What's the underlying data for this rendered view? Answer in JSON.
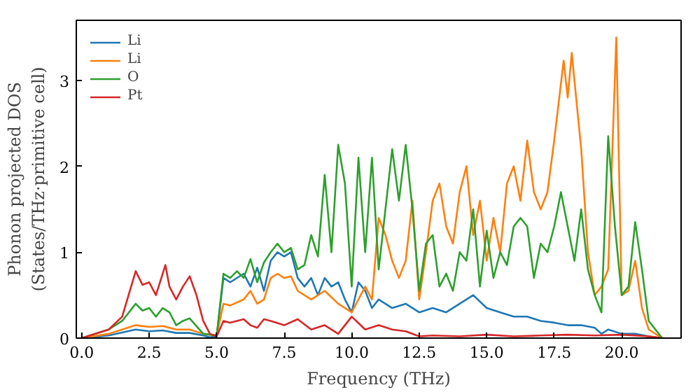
{
  "chart_data": {
    "type": "line",
    "xlabel": "Frequency (THz)",
    "ylabel": "Phonon projected DOS\n(States/THz·primitive cell)",
    "xlim": [
      -0.2,
      22.2
    ],
    "ylim": [
      0,
      3.7
    ],
    "xticks": [
      {
        "value": 0,
        "label": "0.0"
      },
      {
        "value": 2.5,
        "label": "2.5"
      },
      {
        "value": 5,
        "label": "5.0"
      },
      {
        "value": 7.5,
        "label": "7.5"
      },
      {
        "value": 10,
        "label": "10.0"
      },
      {
        "value": 12.5,
        "label": "12.5"
      },
      {
        "value": 15,
        "label": "15.0"
      },
      {
        "value": 17.5,
        "label": "17.5"
      },
      {
        "value": 20,
        "label": "20.0"
      }
    ],
    "yticks": [
      0,
      1,
      2,
      3
    ],
    "legend": "top left",
    "grid": false,
    "line_style": "solid",
    "series": [
      {
        "name": "Li",
        "color": "#1f77b4",
        "x": [
          0,
          1,
          2,
          2.5,
          3,
          3.5,
          4,
          4.5,
          4.75,
          5,
          5.25,
          5.5,
          6,
          6.25,
          6.5,
          6.75,
          7,
          7.25,
          7.5,
          7.75,
          8,
          8.25,
          8.5,
          8.75,
          9,
          9.25,
          9.5,
          9.75,
          10,
          10.25,
          10.5,
          10.75,
          11,
          11.5,
          12,
          12.5,
          13,
          13.5,
          14,
          14.5,
          15,
          15.5,
          16,
          16.5,
          17,
          17.5,
          18,
          18.5,
          19,
          19.25,
          19.5,
          20,
          20.5,
          21,
          21.5
        ],
        "values": [
          0,
          0.03,
          0.1,
          0.08,
          0.09,
          0.06,
          0.06,
          0.03,
          0.01,
          0.02,
          0.7,
          0.65,
          0.75,
          0.6,
          0.82,
          0.55,
          0.9,
          1.0,
          0.95,
          1.0,
          0.7,
          0.6,
          0.7,
          0.5,
          0.7,
          0.6,
          0.65,
          0.45,
          0.3,
          0.65,
          0.55,
          0.35,
          0.45,
          0.35,
          0.4,
          0.3,
          0.35,
          0.3,
          0.4,
          0.5,
          0.35,
          0.3,
          0.25,
          0.25,
          0.2,
          0.18,
          0.15,
          0.15,
          0.12,
          0.05,
          0.1,
          0.05,
          0.05,
          0.02,
          0
        ]
      },
      {
        "name": "Li",
        "color": "#ff7f0e",
        "x": [
          0,
          1,
          2,
          2.5,
          3,
          3.5,
          4,
          4.5,
          5,
          5.25,
          5.5,
          6,
          6.25,
          6.5,
          6.75,
          7,
          7.25,
          7.5,
          7.75,
          8,
          8.5,
          9,
          9.5,
          10,
          10.5,
          10.75,
          11,
          11.25,
          11.5,
          11.75,
          12,
          12.25,
          12.5,
          12.75,
          13,
          13.25,
          13.5,
          13.75,
          14,
          14.25,
          14.5,
          14.75,
          15,
          15.25,
          15.5,
          15.75,
          16,
          16.25,
          16.5,
          16.75,
          17,
          17.25,
          17.5,
          17.85,
          18,
          18.15,
          18.5,
          18.75,
          19,
          19.25,
          19.5,
          19.8,
          20,
          20.25,
          20.5,
          20.75,
          21,
          21.5
        ],
        "values": [
          0,
          0.05,
          0.15,
          0.13,
          0.14,
          0.1,
          0.1,
          0.05,
          0.03,
          0.4,
          0.38,
          0.45,
          0.55,
          0.4,
          0.45,
          0.7,
          0.75,
          0.7,
          0.72,
          0.55,
          0.45,
          0.55,
          0.4,
          0.3,
          0.6,
          0.45,
          1.4,
          1.2,
          0.9,
          0.7,
          0.9,
          1.6,
          0.45,
          1.0,
          1.6,
          1.8,
          1.3,
          1.1,
          1.7,
          2.0,
          1.2,
          1.6,
          0.9,
          1.4,
          1.0,
          1.8,
          2.0,
          1.6,
          2.3,
          1.7,
          1.5,
          1.7,
          2.3,
          3.23,
          2.8,
          3.32,
          2.2,
          1.0,
          0.5,
          0.6,
          0.8,
          3.5,
          0.5,
          0.55,
          0.9,
          0.35,
          0.1,
          0
        ]
      },
      {
        "name": "O",
        "color": "#2ca02c",
        "x": [
          0,
          1,
          1.5,
          2,
          2.25,
          2.5,
          2.75,
          3,
          3.25,
          3.5,
          3.75,
          4,
          4.5,
          5,
          5.25,
          5.5,
          5.75,
          6,
          6.25,
          6.5,
          6.75,
          7,
          7.25,
          7.5,
          7.75,
          8,
          8.25,
          8.5,
          8.75,
          9,
          9.25,
          9.5,
          9.75,
          10,
          10.25,
          10.5,
          10.75,
          11,
          11.25,
          11.5,
          11.75,
          12,
          12.25,
          12.5,
          12.75,
          13,
          13.25,
          13.5,
          13.75,
          14,
          14.25,
          14.5,
          14.75,
          15,
          15.25,
          15.5,
          15.75,
          16,
          16.25,
          16.5,
          16.75,
          17,
          17.25,
          17.5,
          17.75,
          18,
          18.25,
          18.5,
          18.75,
          19,
          19.25,
          19.5,
          19.75,
          20,
          20.25,
          20.5,
          20.75,
          21,
          21.5
        ],
        "values": [
          0,
          0.1,
          0.2,
          0.4,
          0.32,
          0.35,
          0.25,
          0.35,
          0.3,
          0.15,
          0.2,
          0.23,
          0.05,
          0.03,
          0.75,
          0.7,
          0.78,
          0.7,
          0.92,
          0.65,
          0.88,
          1.0,
          1.1,
          1.0,
          1.05,
          0.8,
          0.85,
          1.2,
          0.95,
          1.9,
          1.0,
          2.25,
          1.8,
          0.6,
          2.1,
          1.0,
          2.1,
          0.8,
          1.5,
          2.2,
          1.6,
          2.25,
          1.5,
          0.55,
          1.1,
          1.2,
          0.6,
          0.75,
          0.55,
          1.0,
          0.9,
          1.5,
          0.6,
          1.25,
          0.7,
          1.0,
          0.85,
          1.3,
          1.4,
          1.3,
          0.7,
          1.1,
          1.0,
          1.3,
          1.7,
          1.3,
          0.9,
          1.5,
          0.8,
          0.5,
          0.3,
          2.35,
          1.3,
          0.5,
          0.6,
          1.35,
          0.8,
          0.2,
          0
        ]
      },
      {
        "name": "Pt",
        "color": "#d62728",
        "x": [
          0,
          1,
          1.5,
          2,
          2.25,
          2.5,
          2.75,
          3,
          3.1,
          3.25,
          3.5,
          3.75,
          4,
          4.25,
          4.5,
          4.75,
          5,
          5.25,
          5.5,
          6,
          6.25,
          6.5,
          6.75,
          7,
          7.5,
          8,
          8.5,
          9,
          9.5,
          10,
          10.5,
          11,
          11.5,
          12,
          12.5,
          13,
          14,
          15,
          16,
          17,
          18,
          19,
          20,
          21,
          21.5
        ],
        "values": [
          0,
          0.1,
          0.25,
          0.78,
          0.62,
          0.65,
          0.5,
          0.75,
          0.85,
          0.6,
          0.45,
          0.6,
          0.72,
          0.5,
          0.2,
          0.05,
          0.02,
          0.2,
          0.18,
          0.22,
          0.15,
          0.12,
          0.22,
          0.2,
          0.15,
          0.22,
          0.1,
          0.15,
          0.05,
          0.25,
          0.1,
          0.15,
          0.1,
          0.08,
          0.02,
          0.03,
          0.02,
          0.04,
          0.02,
          0.03,
          0.04,
          0.03,
          0.04,
          0.02,
          0
        ]
      }
    ]
  }
}
